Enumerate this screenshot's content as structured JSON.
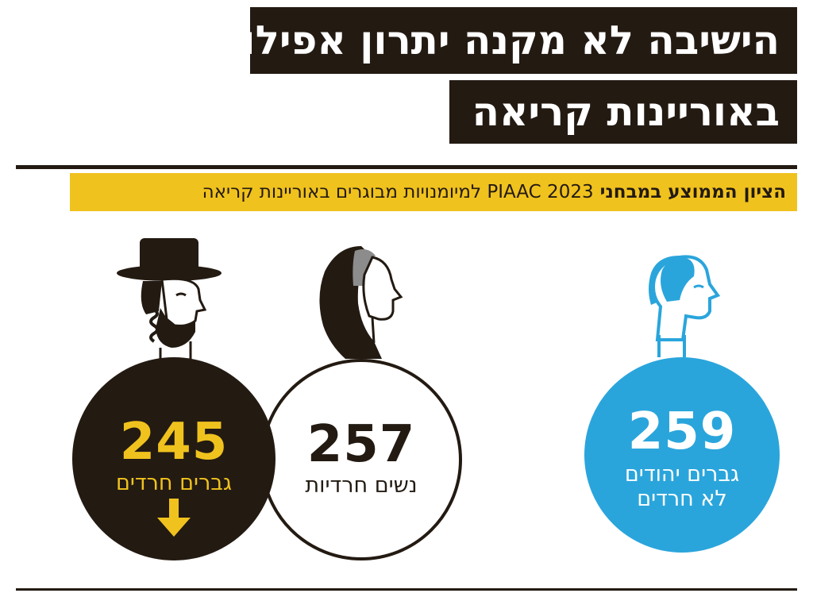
{
  "header": {
    "title_line1": "הישיבה לא מקנה יתרון אפילו",
    "title_line2": "באוריינות קריאה"
  },
  "subtitle": {
    "bold_part": "הציון הממוצע במבחני",
    "regular_part": "PIAAC 2023 למיומנויות מבוגרים באוריינות קריאה"
  },
  "groups": [
    {
      "value": "245",
      "label_line1": "גברים חרדים",
      "label_line2": "",
      "color": "#231a12",
      "text_color": "#f0c21e"
    },
    {
      "value": "257",
      "label_line1": "נשים חרדיות",
      "label_line2": "",
      "color": "#ffffff",
      "text_color": "#231a12"
    },
    {
      "value": "259",
      "label_line1": "גברים יהודים",
      "label_line2": "לא חרדים",
      "color": "#2aa5dc",
      "text_color": "#ffffff"
    }
  ],
  "colors": {
    "dark": "#231a12",
    "yellow": "#f0c21e",
    "blue": "#2aa5dc"
  },
  "icons": [
    "haredi-man-icon",
    "haredi-woman-icon",
    "non-haredi-man-icon",
    "down-arrow-icon"
  ]
}
